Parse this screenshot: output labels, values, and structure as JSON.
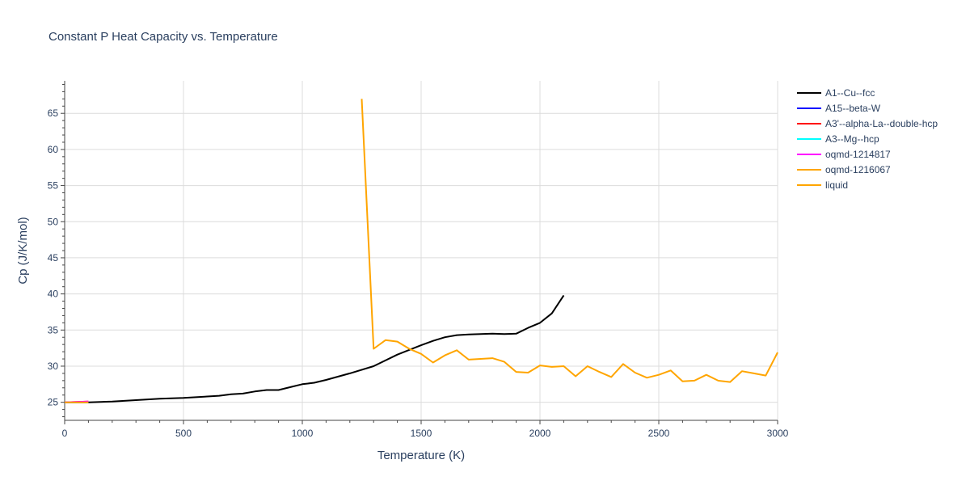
{
  "chart_data": {
    "type": "line",
    "title": "Constant P Heat Capacity vs. Temperature",
    "xlabel": "Temperature (K)",
    "ylabel": "Cp (J/K/mol)",
    "xlim": [
      0,
      3000
    ],
    "ylim": [
      22.5,
      69.5
    ],
    "xticks": [
      0,
      500,
      1000,
      1500,
      2000,
      2500,
      3000
    ],
    "yticks": [
      25,
      30,
      35,
      40,
      45,
      50,
      55,
      60,
      65
    ],
    "grid": true,
    "legend_position": "top-right",
    "series": [
      {
        "name": "A1--Cu--fcc",
        "color": "#000000",
        "x": [
          0,
          100,
          200,
          300,
          400,
          500,
          600,
          650,
          700,
          750,
          800,
          850,
          900,
          950,
          1000,
          1050,
          1100,
          1200,
          1300,
          1400,
          1500,
          1550,
          1600,
          1650,
          1700,
          1750,
          1800,
          1850,
          1900,
          1950,
          2000,
          2050,
          2100
        ],
        "y": [
          25.0,
          25.0,
          25.1,
          25.3,
          25.5,
          25.6,
          25.8,
          25.9,
          26.1,
          26.2,
          26.5,
          26.7,
          26.7,
          27.1,
          27.5,
          27.7,
          28.1,
          29.0,
          30.0,
          31.6,
          32.9,
          33.5,
          34.0,
          34.3,
          34.4,
          34.45,
          34.5,
          34.45,
          34.5,
          35.3,
          36.0,
          37.3,
          39.8
        ]
      },
      {
        "name": "A15--beta-W",
        "color": "#0000ff",
        "x": [
          0,
          100
        ],
        "y": [
          25.0,
          25.05
        ]
      },
      {
        "name": "A3'--alpha-La--double-hcp",
        "color": "#ff0000",
        "x": [
          0,
          100
        ],
        "y": [
          25.0,
          25.1
        ]
      },
      {
        "name": "A3--Mg--hcp",
        "color": "#00ffff",
        "x": [
          0,
          100
        ],
        "y": [
          25.0,
          25.05
        ]
      },
      {
        "name": "oqmd-1214817",
        "color": "#ff00ff",
        "x": [
          0,
          100
        ],
        "y": [
          25.0,
          25.1
        ]
      },
      {
        "name": "oqmd-1216067",
        "color": "#ffa500",
        "x": [
          0,
          100
        ],
        "y": [
          25.0,
          25.0
        ]
      },
      {
        "name": "liquid",
        "color": "#ffa500",
        "x": [
          1250,
          1300,
          1350,
          1400,
          1450,
          1500,
          1550,
          1600,
          1650,
          1700,
          1750,
          1800,
          1850,
          1900,
          1950,
          2000,
          2050,
          2100,
          2150,
          2200,
          2250,
          2300,
          2350,
          2400,
          2450,
          2500,
          2550,
          2600,
          2650,
          2700,
          2750,
          2800,
          2850,
          2900,
          2950,
          3000
        ],
        "y": [
          67.0,
          32.4,
          33.6,
          33.4,
          32.4,
          31.7,
          30.5,
          31.5,
          32.2,
          30.9,
          31.0,
          31.1,
          30.6,
          29.2,
          29.1,
          30.1,
          29.9,
          30.0,
          28.6,
          30.0,
          29.2,
          28.5,
          30.3,
          29.1,
          28.4,
          28.8,
          29.4,
          27.9,
          28.0,
          28.8,
          28.0,
          27.8,
          29.3,
          29.0,
          28.7,
          31.9
        ]
      }
    ]
  }
}
